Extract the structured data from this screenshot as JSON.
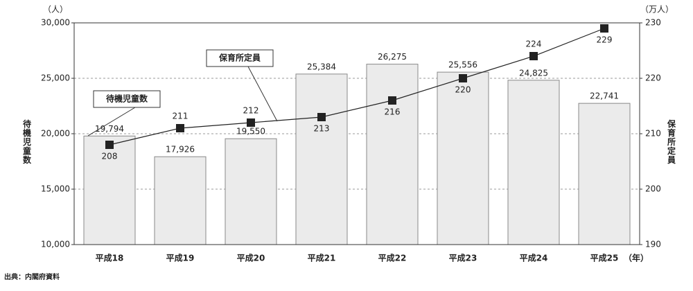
{
  "chart_data": {
    "type": "bar-line",
    "y_unit": "（人）",
    "y2_unit": "（万人）",
    "y_label": "待機児童数",
    "y2_label": "保育所定員",
    "x_unit": "（年）",
    "source": "出典：内閣府資料",
    "categories": [
      "平成18",
      "平成19",
      "平成20",
      "平成21",
      "平成22",
      "平成23",
      "平成24",
      "平成25"
    ],
    "series": [
      {
        "name": "待機児童数",
        "type": "bar",
        "color": "#ebebeb",
        "values": [
          19794,
          17926,
          19550,
          25384,
          26275,
          25556,
          24825,
          22741
        ],
        "value_labels": [
          "19,794",
          "17,926",
          "19,550",
          "25,384",
          "26,275",
          "25,556",
          "24,825",
          "22,741"
        ]
      },
      {
        "name": "保育所定員",
        "type": "line",
        "color": "#222222",
        "axis": "y2",
        "values": [
          208,
          211,
          212,
          213,
          216,
          220,
          224,
          229
        ]
      }
    ],
    "ylim": [
      10000,
      30000
    ],
    "yticks": [
      {
        "value": 10000,
        "label": "10,000"
      },
      {
        "value": 15000,
        "label": "15,000"
      },
      {
        "value": 20000,
        "label": "20,000"
      },
      {
        "value": 25000,
        "label": "25,000"
      },
      {
        "value": 30000,
        "label": "30,000"
      }
    ],
    "y2lim": [
      190,
      230
    ],
    "y2ticks": [
      190,
      200,
      210,
      220,
      230
    ],
    "grid": true
  }
}
